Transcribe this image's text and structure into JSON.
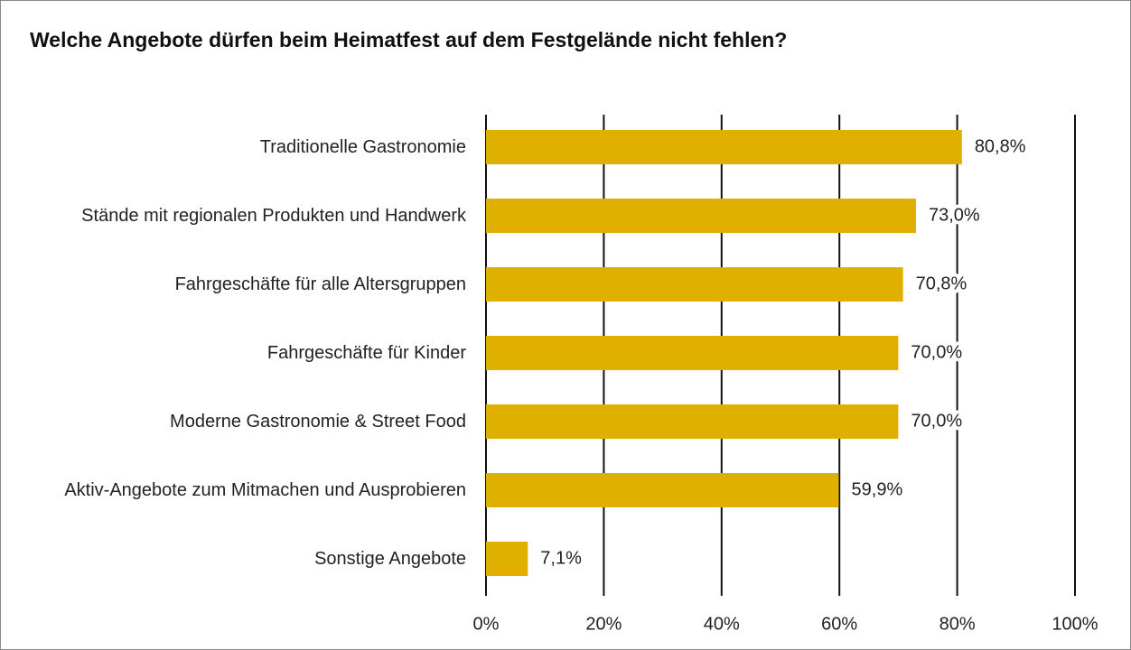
{
  "chart_data": {
    "type": "bar",
    "orientation": "horizontal",
    "title": "Welche Angebote dürfen beim Heimatfest auf dem Festgelände nicht fehlen?",
    "categories": [
      "Traditionelle Gastronomie",
      "Stände mit regionalen Produkten und Handwerk",
      "Fahrgeschäfte für alle Altersgruppen",
      "Fahrgeschäfte für Kinder",
      "Moderne Gastronomie & Street Food",
      "Aktiv-Angebote zum Mitmachen und Ausprobieren",
      "Sonstige Angebote"
    ],
    "values": [
      80.8,
      73.0,
      70.8,
      70.0,
      70.0,
      59.9,
      7.1
    ],
    "value_labels": [
      "80,8%",
      "73,0%",
      "70,8%",
      "70,0%",
      "70,0%",
      "59,9%",
      "7,1%"
    ],
    "color": "#e0b000",
    "xlim": [
      0,
      100
    ],
    "xticks": [
      {
        "value": 0,
        "label": "0%"
      },
      {
        "value": 20,
        "label": "20%"
      },
      {
        "value": 40,
        "label": "40%"
      },
      {
        "value": 60,
        "label": "60%"
      },
      {
        "value": 80,
        "label": "80%"
      },
      {
        "value": 100,
        "label": "100%"
      }
    ],
    "grid": true
  }
}
